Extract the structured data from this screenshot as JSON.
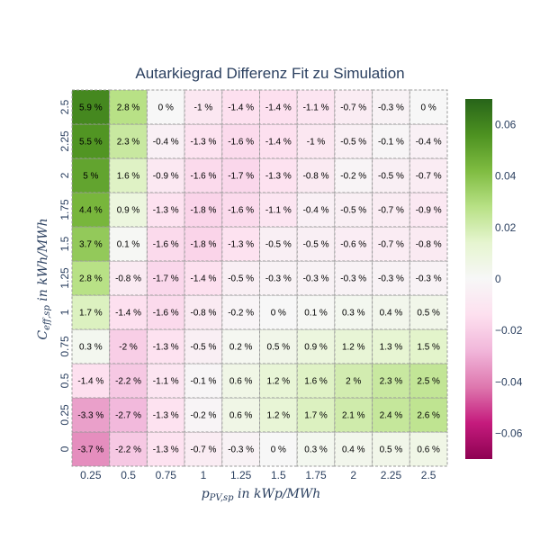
{
  "chart_data": {
    "type": "heatmap",
    "title": "Autarkiegrad Differenz Fit zu Simulation",
    "xlabel": {
      "main": "p",
      "sub": "PV,sp",
      "unit": " in kWp/MWh"
    },
    "ylabel": {
      "main": "C",
      "sub": "eff,sp",
      "unit": " in kWh/MWh"
    },
    "x": [
      "0.25",
      "0.5",
      "0.75",
      "1",
      "1.25",
      "1.5",
      "1.75",
      "2",
      "2.25",
      "2.5"
    ],
    "y": [
      "0",
      "0.25",
      "0.5",
      "0.75",
      "1",
      "1.25",
      "1.5",
      "1.75",
      "2",
      "2.25",
      "2.5"
    ],
    "z": [
      [
        -3.7,
        -2.2,
        -1.3,
        -0.7,
        -0.3,
        0,
        0.3,
        0.4,
        0.5,
        0.6
      ],
      [
        -3.3,
        -2.7,
        -1.3,
        -0.2,
        0.6,
        1.2,
        1.7,
        2.1,
        2.4,
        2.6
      ],
      [
        -1.4,
        -2.2,
        -1.1,
        -0.1,
        0.6,
        1.2,
        1.6,
        2,
        2.3,
        2.5
      ],
      [
        0.3,
        -2,
        -1.3,
        -0.5,
        0.2,
        0.5,
        0.9,
        1.2,
        1.3,
        1.5
      ],
      [
        1.7,
        -1.4,
        -1.6,
        -0.8,
        -0.2,
        0,
        0.1,
        0.3,
        0.4,
        0.5
      ],
      [
        2.8,
        -0.8,
        -1.7,
        -1.4,
        -0.5,
        -0.3,
        -0.3,
        -0.3,
        -0.3,
        -0.3
      ],
      [
        3.7,
        0.1,
        -1.6,
        -1.8,
        -1.3,
        -0.5,
        -0.5,
        -0.6,
        -0.7,
        -0.8
      ],
      [
        4.4,
        0.9,
        -1.3,
        -1.8,
        -1.6,
        -1.1,
        -0.4,
        -0.5,
        -0.7,
        -0.9
      ],
      [
        5,
        1.6,
        -0.9,
        -1.6,
        -1.7,
        -1.3,
        -0.8,
        -0.2,
        -0.5,
        -0.7
      ],
      [
        5.5,
        2.3,
        -0.4,
        -1.3,
        -1.6,
        -1.4,
        -1,
        -0.5,
        -0.1,
        -0.4
      ],
      [
        5.9,
        2.8,
        0,
        -1,
        -1.4,
        -1.4,
        -1.1,
        -0.7,
        -0.3,
        0
      ]
    ],
    "value_suffix": " %",
    "colorscale": "PiYG",
    "zrange": [
      -0.07,
      0.07
    ],
    "colorbar_ticks": [
      "0.06",
      "0.04",
      "0.02",
      "0",
      "−0.02",
      "−0.04",
      "−0.06"
    ],
    "colorbar_tick_values": [
      0.06,
      0.04,
      0.02,
      0,
      -0.02,
      -0.04,
      -0.06
    ],
    "grid": false,
    "cell_border_color": "#999999"
  }
}
